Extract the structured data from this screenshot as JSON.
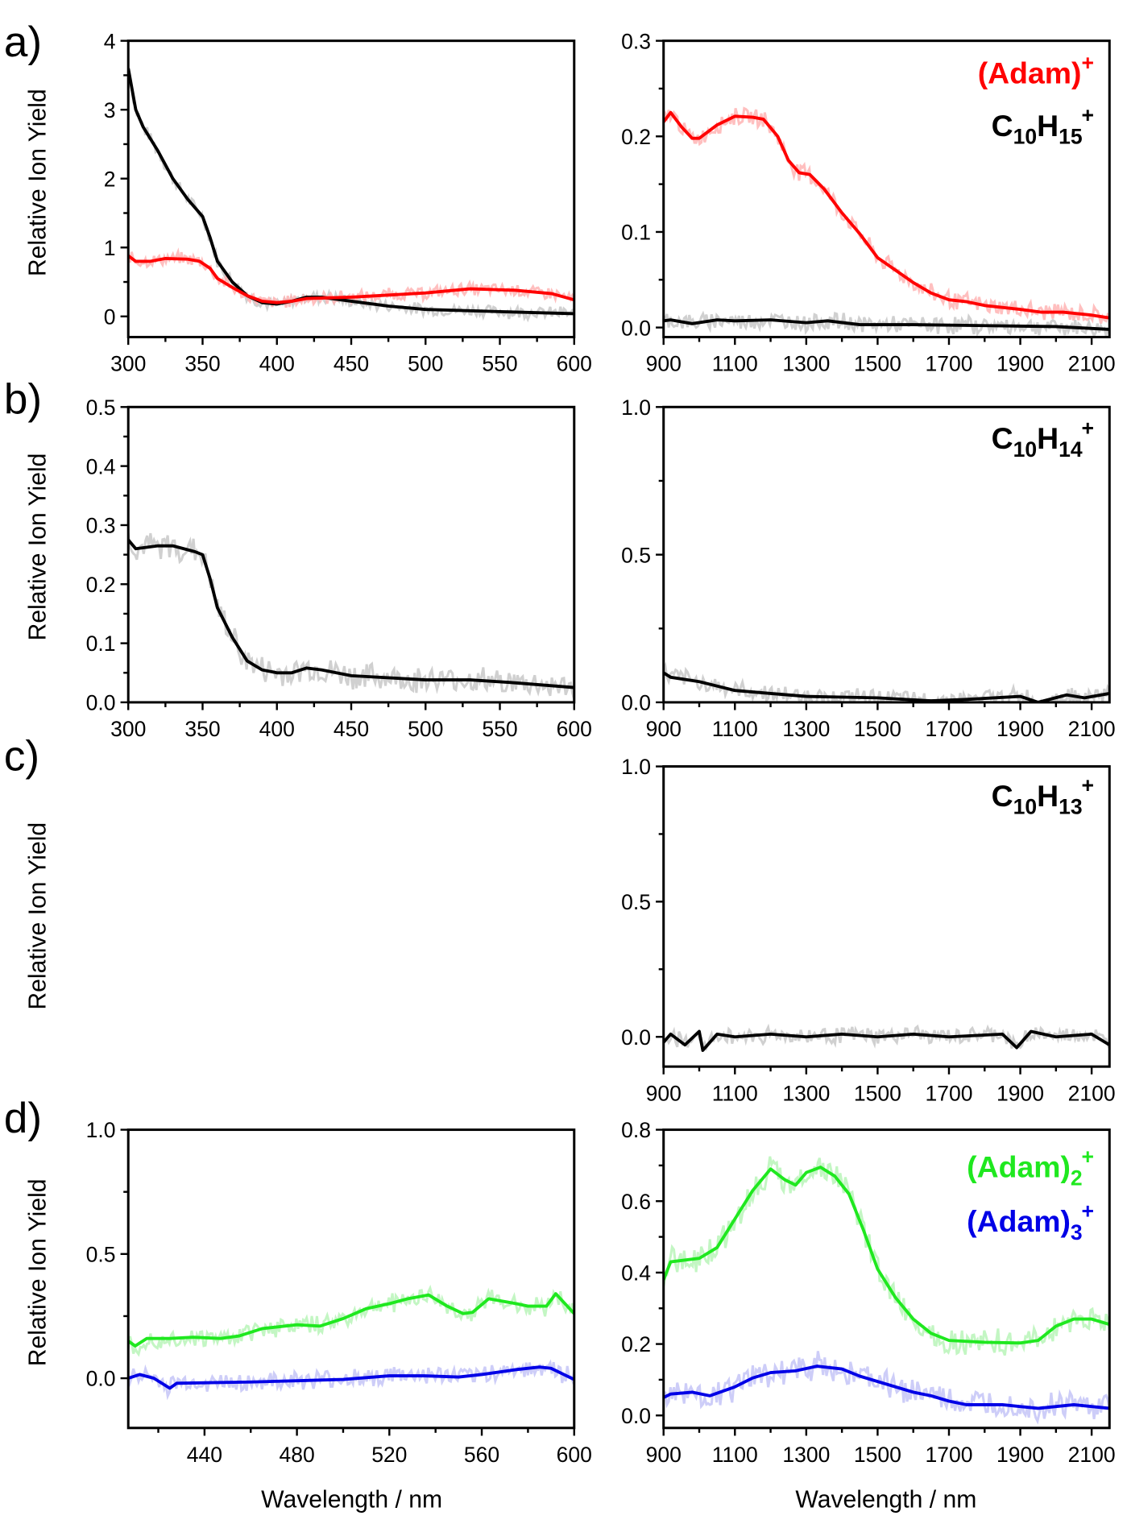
{
  "figure": {
    "panel_letters": [
      "a)",
      "b)",
      "c)",
      "d)"
    ],
    "ylabel": "Relative Ion Yield",
    "xlabel": "Wavelength / nm"
  },
  "colors": {
    "red": "#ff0000",
    "red_raw": "#ffb4b4",
    "black": "#000000",
    "black_raw": "#c8c8c8",
    "green": "#1fe81f",
    "green_raw": "#b9f5b9",
    "blue": "#0000e6",
    "blue_raw": "#c4c4f7"
  },
  "chart_data": [
    {
      "id": "a-left",
      "type": "line",
      "row": "a",
      "side": "left",
      "xlim": [
        300,
        600
      ],
      "ylim": [
        -0.3,
        4
      ],
      "xticks": [
        300,
        350,
        400,
        450,
        500,
        550,
        600
      ],
      "xtick_labels": [
        "300",
        "350",
        "400",
        "450",
        "500",
        "550",
        "600"
      ],
      "yticks": [
        0,
        1,
        2,
        3,
        4
      ],
      "ytick_labels": [
        "0",
        "1",
        "2",
        "3",
        "4"
      ],
      "show_ylabel": true,
      "show_xlabel": false,
      "grid": false,
      "legend": [],
      "series": [
        {
          "color": "black",
          "x": [
            300,
            305,
            310,
            320,
            330,
            340,
            350,
            355,
            360,
            370,
            380,
            390,
            400,
            410,
            420,
            430,
            450,
            475,
            500,
            550,
            600
          ],
          "y": [
            3.6,
            3.0,
            2.75,
            2.4,
            2.0,
            1.7,
            1.45,
            1.15,
            0.8,
            0.5,
            0.3,
            0.2,
            0.18,
            0.22,
            0.28,
            0.28,
            0.22,
            0.15,
            0.1,
            0.07,
            0.04
          ]
        },
        {
          "color": "red",
          "x": [
            300,
            305,
            315,
            325,
            340,
            348,
            355,
            360,
            370,
            380,
            390,
            400,
            410,
            420,
            450,
            500,
            530,
            560,
            585,
            600
          ],
          "y": [
            0.88,
            0.8,
            0.8,
            0.84,
            0.83,
            0.8,
            0.7,
            0.55,
            0.42,
            0.3,
            0.22,
            0.2,
            0.22,
            0.26,
            0.28,
            0.34,
            0.4,
            0.38,
            0.33,
            0.24
          ]
        }
      ]
    },
    {
      "id": "a-right",
      "type": "line",
      "row": "a",
      "side": "right",
      "xlim": [
        900,
        2150
      ],
      "ylim": [
        -0.01,
        0.3
      ],
      "xticks": [
        900,
        1100,
        1300,
        1500,
        1700,
        1900,
        2100
      ],
      "xtick_labels": [
        "900",
        "1100",
        "1300",
        "1500",
        "1700",
        "1900",
        "2100"
      ],
      "yticks": [
        0,
        0.1,
        0.2,
        0.3
      ],
      "ytick_labels": [
        "0.0",
        "0.1",
        "0.2",
        "0.3"
      ],
      "show_ylabel": false,
      "show_xlabel": false,
      "grid": false,
      "legend": [
        {
          "color": "red",
          "parts": [
            {
              "t": "(Adam)"
            },
            {
              "t": "+",
              "sup": true
            }
          ]
        },
        {
          "color": "black",
          "parts": [
            {
              "t": "C"
            },
            {
              "t": "10",
              "sub": true
            },
            {
              "t": "H"
            },
            {
              "t": "15",
              "sub": true
            },
            {
              "t": "+",
              "sup": true
            }
          ]
        }
      ],
      "series": [
        {
          "color": "red",
          "x": [
            900,
            920,
            950,
            980,
            1000,
            1050,
            1100,
            1150,
            1180,
            1220,
            1250,
            1280,
            1310,
            1350,
            1400,
            1450,
            1500,
            1550,
            1600,
            1650,
            1700,
            1750,
            1800,
            1900,
            1960,
            2020,
            2100,
            2150
          ],
          "y": [
            0.215,
            0.225,
            0.21,
            0.198,
            0.198,
            0.212,
            0.221,
            0.22,
            0.218,
            0.2,
            0.175,
            0.162,
            0.16,
            0.145,
            0.12,
            0.098,
            0.073,
            0.06,
            0.047,
            0.036,
            0.029,
            0.027,
            0.023,
            0.019,
            0.016,
            0.016,
            0.013,
            0.01
          ]
        },
        {
          "color": "black",
          "x": [
            900,
            920,
            980,
            1050,
            1100,
            1200,
            1300,
            1360,
            1450,
            1600,
            1800,
            2000,
            2150
          ],
          "y": [
            0.007,
            0.008,
            0.004,
            0.008,
            0.007,
            0.008,
            0.005,
            0.007,
            0.003,
            0.003,
            0.002,
            0.001,
            -0.002
          ]
        }
      ]
    },
    {
      "id": "b-left",
      "type": "line",
      "row": "b",
      "side": "left",
      "xlim": [
        300,
        600
      ],
      "ylim": [
        0,
        0.5
      ],
      "xticks": [
        300,
        350,
        400,
        450,
        500,
        550,
        600
      ],
      "xtick_labels": [
        "300",
        "350",
        "400",
        "450",
        "500",
        "550",
        "600"
      ],
      "yticks": [
        0,
        0.1,
        0.2,
        0.3,
        0.4,
        0.5
      ],
      "ytick_labels": [
        "0.0",
        "0.1",
        "0.2",
        "0.3",
        "0.4",
        "0.5"
      ],
      "show_ylabel": true,
      "show_xlabel": false,
      "grid": false,
      "legend": [],
      "series": [
        {
          "color": "black",
          "x": [
            300,
            305,
            320,
            330,
            345,
            350,
            355,
            360,
            370,
            380,
            390,
            400,
            410,
            420,
            430,
            450,
            500,
            530,
            560,
            600
          ],
          "y": [
            0.275,
            0.26,
            0.265,
            0.265,
            0.255,
            0.25,
            0.21,
            0.16,
            0.11,
            0.07,
            0.055,
            0.05,
            0.05,
            0.058,
            0.055,
            0.045,
            0.038,
            0.038,
            0.033,
            0.025
          ]
        }
      ]
    },
    {
      "id": "b-right",
      "type": "line",
      "row": "b",
      "side": "right",
      "xlim": [
        900,
        2150
      ],
      "ylim": [
        0,
        1.0
      ],
      "xticks": [
        900,
        1100,
        1300,
        1500,
        1700,
        1900,
        2100
      ],
      "xtick_labels": [
        "900",
        "1100",
        "1300",
        "1500",
        "1700",
        "1900",
        "2100"
      ],
      "yticks": [
        0,
        0.5,
        1.0
      ],
      "ytick_labels": [
        "0.0",
        "0.5",
        "1.0"
      ],
      "show_ylabel": false,
      "show_xlabel": false,
      "grid": false,
      "legend": [
        {
          "color": "black",
          "parts": [
            {
              "t": "C"
            },
            {
              "t": "10",
              "sub": true
            },
            {
              "t": "H"
            },
            {
              "t": "14",
              "sub": true
            },
            {
              "t": "+",
              "sup": true
            }
          ]
        }
      ],
      "series": [
        {
          "color": "black",
          "x": [
            900,
            920,
            1000,
            1100,
            1200,
            1300,
            1500,
            1650,
            1750,
            1900,
            1950,
            2030,
            2080,
            2150
          ],
          "y": [
            0.1,
            0.085,
            0.07,
            0.04,
            0.03,
            0.02,
            0.015,
            0.005,
            0.01,
            0.02,
            0.0,
            0.025,
            0.015,
            0.03
          ]
        }
      ]
    },
    {
      "id": "c-right",
      "type": "line",
      "row": "c",
      "side": "right",
      "xlim": [
        900,
        2150
      ],
      "ylim": [
        -0.11,
        1.0
      ],
      "xticks": [
        900,
        1100,
        1300,
        1500,
        1700,
        1900,
        2100
      ],
      "xtick_labels": [
        "900",
        "1100",
        "1300",
        "1500",
        "1700",
        "1900",
        "2100"
      ],
      "yticks": [
        0,
        0.5,
        1.0
      ],
      "ytick_labels": [
        "0.0",
        "0.5",
        "1.0"
      ],
      "show_ylabel": true,
      "show_xlabel": false,
      "grid": false,
      "legend": [
        {
          "color": "black",
          "parts": [
            {
              "t": "C"
            },
            {
              "t": "10",
              "sub": true
            },
            {
              "t": "H"
            },
            {
              "t": "13",
              "sub": true
            },
            {
              "t": "+",
              "sup": true
            }
          ]
        }
      ],
      "series": [
        {
          "color": "black",
          "x": [
            900,
            920,
            960,
            1000,
            1010,
            1050,
            1100,
            1200,
            1300,
            1400,
            1500,
            1600,
            1700,
            1850,
            1890,
            1930,
            2000,
            2100,
            2150
          ],
          "y": [
            -0.02,
            0.01,
            -0.03,
            0.02,
            -0.05,
            0.01,
            0.0,
            0.01,
            0.0,
            0.01,
            0.0,
            0.01,
            0.0,
            0.01,
            -0.04,
            0.02,
            0.0,
            0.01,
            -0.03
          ]
        }
      ]
    },
    {
      "id": "d-left",
      "type": "line",
      "row": "d",
      "side": "left",
      "xlim": [
        407,
        600
      ],
      "ylim": [
        -0.2,
        1.0
      ],
      "xticks": [
        440,
        480,
        520,
        560,
        600
      ],
      "xtick_labels": [
        "440",
        "480",
        "520",
        "560",
        "600"
      ],
      "yticks": [
        0,
        0.5,
        1.0
      ],
      "ytick_labels": [
        "0.0",
        "0.5",
        "1.0"
      ],
      "show_ylabel": true,
      "show_xlabel": true,
      "grid": false,
      "legend": [],
      "series": [
        {
          "color": "green",
          "x": [
            407,
            410,
            415,
            425,
            435,
            447,
            455,
            465,
            480,
            490,
            500,
            510,
            520,
            528,
            537,
            545,
            552,
            556,
            563,
            575,
            580,
            588,
            592,
            600
          ],
          "y": [
            0.15,
            0.13,
            0.16,
            0.16,
            0.165,
            0.16,
            0.17,
            0.2,
            0.215,
            0.21,
            0.24,
            0.28,
            0.3,
            0.32,
            0.335,
            0.29,
            0.26,
            0.265,
            0.32,
            0.3,
            0.29,
            0.29,
            0.34,
            0.26
          ]
        },
        {
          "color": "blue",
          "x": [
            407,
            412,
            418,
            425,
            428,
            460,
            500,
            520,
            535,
            550,
            560,
            575,
            585,
            590,
            600
          ],
          "y": [
            0.0,
            0.015,
            0.0,
            -0.04,
            -0.02,
            -0.015,
            -0.005,
            0.01,
            0.01,
            0.005,
            0.015,
            0.035,
            0.045,
            0.04,
            -0.005
          ]
        }
      ]
    },
    {
      "id": "d-right",
      "type": "line",
      "row": "d",
      "side": "right",
      "xlim": [
        900,
        2150
      ],
      "ylim": [
        -0.035,
        0.8
      ],
      "xticks": [
        900,
        1100,
        1300,
        1500,
        1700,
        1900,
        2100
      ],
      "xtick_labels": [
        "900",
        "1100",
        "1300",
        "1500",
        "1700",
        "1900",
        "2100"
      ],
      "yticks": [
        0,
        0.2,
        0.4,
        0.6,
        0.8
      ],
      "ytick_labels": [
        "0.0",
        "0.2",
        "0.4",
        "0.6",
        "0.8"
      ],
      "show_ylabel": false,
      "show_xlabel": true,
      "grid": false,
      "legend": [
        {
          "color": "green",
          "parts": [
            {
              "t": "(Adam)"
            },
            {
              "t": "2",
              "sub": true
            },
            {
              "t": "+",
              "sup": true
            }
          ]
        },
        {
          "color": "blue",
          "parts": [
            {
              "t": "(Adam)"
            },
            {
              "t": "3",
              "sub": true
            },
            {
              "t": "+",
              "sup": true
            }
          ]
        }
      ],
      "series": [
        {
          "color": "green",
          "x": [
            900,
            920,
            1000,
            1050,
            1100,
            1150,
            1200,
            1240,
            1270,
            1300,
            1340,
            1380,
            1420,
            1460,
            1500,
            1550,
            1600,
            1650,
            1700,
            1800,
            1900,
            1950,
            2000,
            2050,
            2100,
            2150
          ],
          "y": [
            0.38,
            0.43,
            0.44,
            0.47,
            0.55,
            0.63,
            0.69,
            0.66,
            0.645,
            0.68,
            0.695,
            0.67,
            0.62,
            0.52,
            0.41,
            0.33,
            0.27,
            0.23,
            0.21,
            0.205,
            0.203,
            0.21,
            0.25,
            0.27,
            0.27,
            0.255
          ]
        },
        {
          "color": "blue",
          "x": [
            900,
            920,
            980,
            1030,
            1100,
            1150,
            1200,
            1270,
            1330,
            1400,
            1450,
            1500,
            1600,
            1650,
            1700,
            1750,
            1850,
            1950,
            2050,
            2150
          ],
          "y": [
            0.05,
            0.06,
            0.065,
            0.055,
            0.08,
            0.105,
            0.12,
            0.125,
            0.138,
            0.13,
            0.11,
            0.095,
            0.065,
            0.055,
            0.04,
            0.03,
            0.03,
            0.02,
            0.03,
            0.02
          ]
        }
      ]
    }
  ]
}
